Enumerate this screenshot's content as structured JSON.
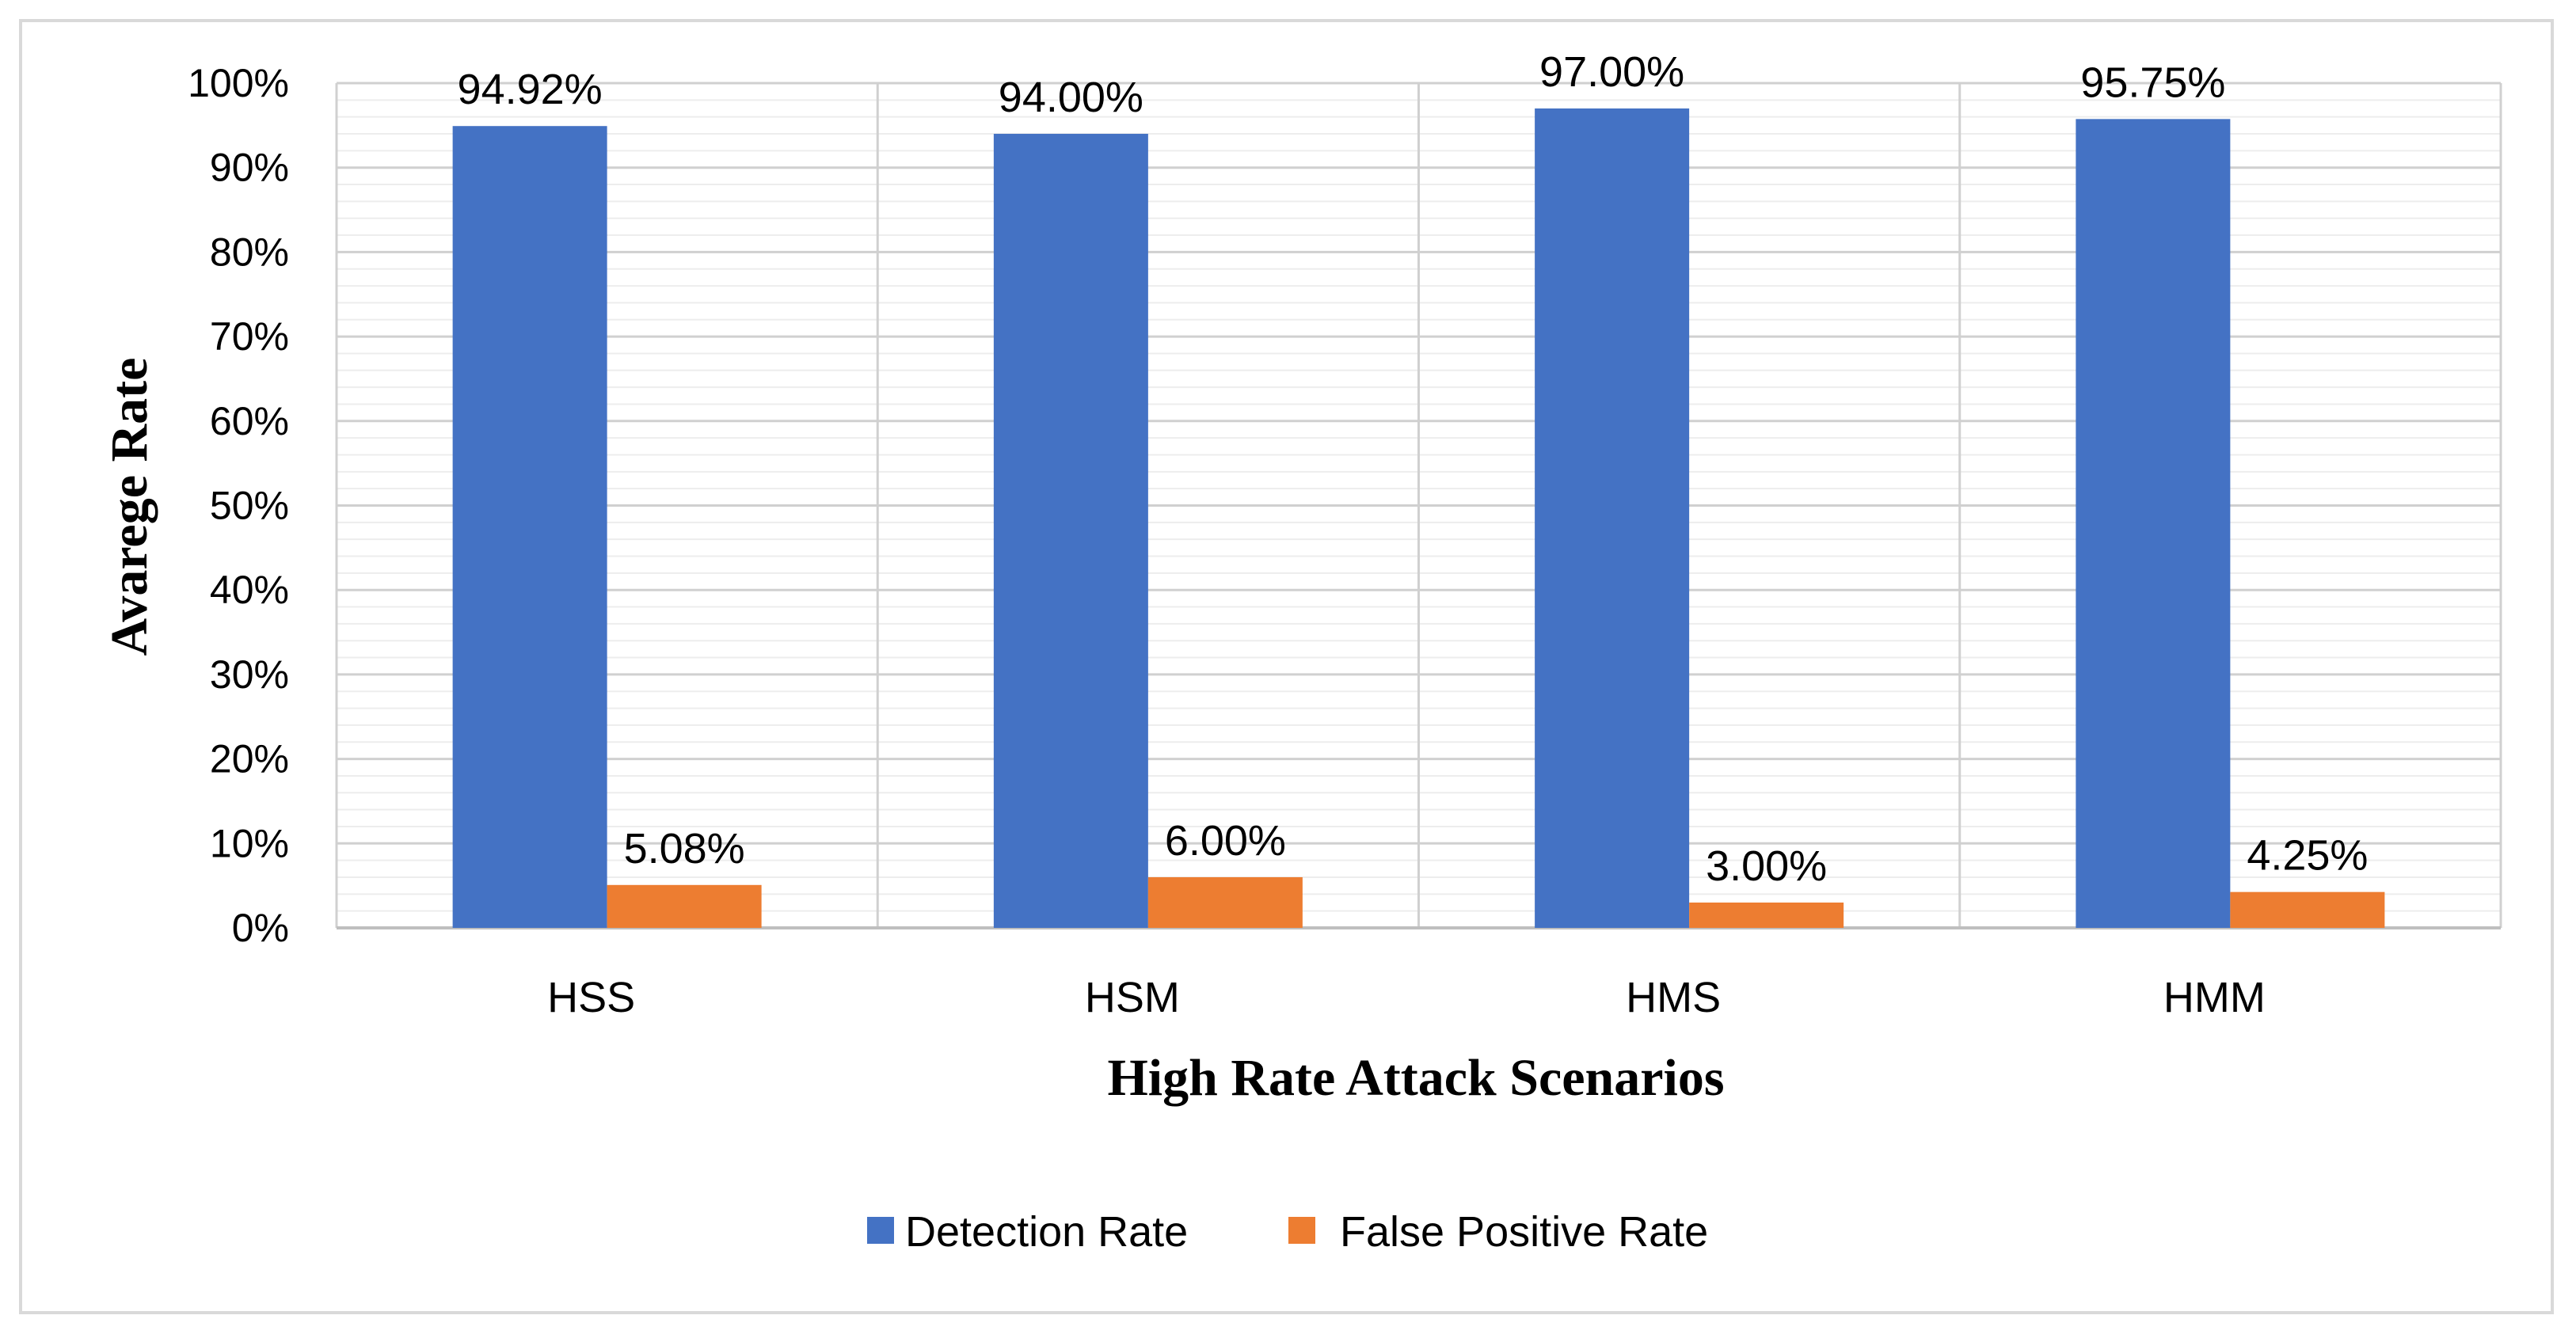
{
  "chart_data": {
    "type": "bar",
    "title": "",
    "xlabel": "High Rate Attack Scenarios",
    "ylabel": "Avarege Rate",
    "ylim": [
      0,
      100
    ],
    "yticks": [
      0,
      10,
      20,
      30,
      40,
      50,
      60,
      70,
      80,
      90,
      100
    ],
    "ytick_labels": [
      "0%",
      "10%",
      "20%",
      "30%",
      "40%",
      "50%",
      "60%",
      "70%",
      "80%",
      "90%",
      "100%"
    ],
    "grid": true,
    "categories": [
      "HSS",
      "HSM",
      "HMS",
      "HMM"
    ],
    "series": [
      {
        "name": "Detection Rate",
        "color": "#4472c4",
        "values": [
          94.92,
          94.0,
          97.0,
          95.75
        ],
        "labels": [
          "94.92%",
          "94.00%",
          "97.00%",
          "95.75%"
        ]
      },
      {
        "name": "False Positive Rate",
        "color": "#ed7d31",
        "values": [
          5.08,
          6.0,
          3.0,
          4.25
        ],
        "labels": [
          "5.08%",
          "6.00%",
          "3.00%",
          "4.25%"
        ]
      }
    ],
    "legend_position": "bottom"
  }
}
